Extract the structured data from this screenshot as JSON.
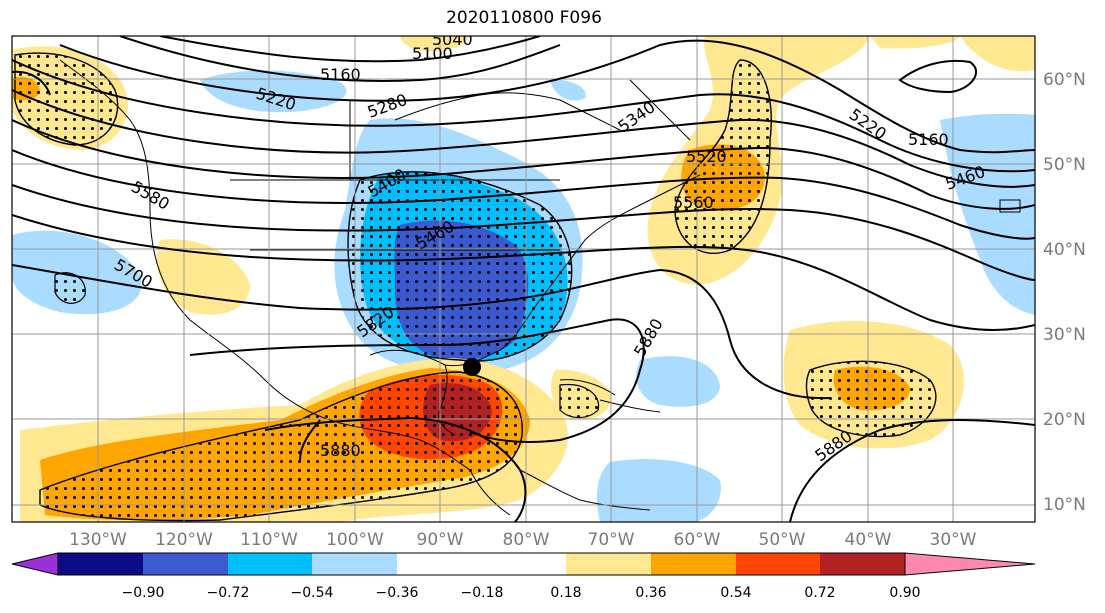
{
  "title": "2020110800 F096",
  "lon_ticks": [
    "130°W",
    "120°W",
    "110°W",
    "100°W",
    "90°W",
    "80°W",
    "70°W",
    "60°W",
    "50°W",
    "40°W",
    "30°W"
  ],
  "lat_ticks": [
    "60°N",
    "50°N",
    "40°N",
    "30°N",
    "20°N",
    "10°N"
  ],
  "colorbar": {
    "tick_labels": [
      "−0.90",
      "−0.72",
      "−0.54",
      "−0.36",
      "−0.18",
      "0.18",
      "0.36",
      "0.54",
      "0.72",
      "0.90"
    ],
    "colors": [
      "#9b30d8",
      "#0b0b8a",
      "#3c5ad0",
      "#00bfff",
      "#aadcff",
      "#ffffff",
      "#ffe890",
      "#ffa500",
      "#ff4500",
      "#b22222",
      "#ff88b0"
    ]
  },
  "contour_labels": [
    "5040",
    "5100",
    "5160",
    "5220",
    "5280",
    "5340",
    "5400",
    "5460",
    "5520",
    "5560",
    "5580",
    "5700",
    "5820",
    "5880",
    "5880",
    "5880",
    "5460",
    "5160",
    "5220",
    "5340",
    "5460",
    "5520"
  ],
  "marker": "storm-center-dot"
}
